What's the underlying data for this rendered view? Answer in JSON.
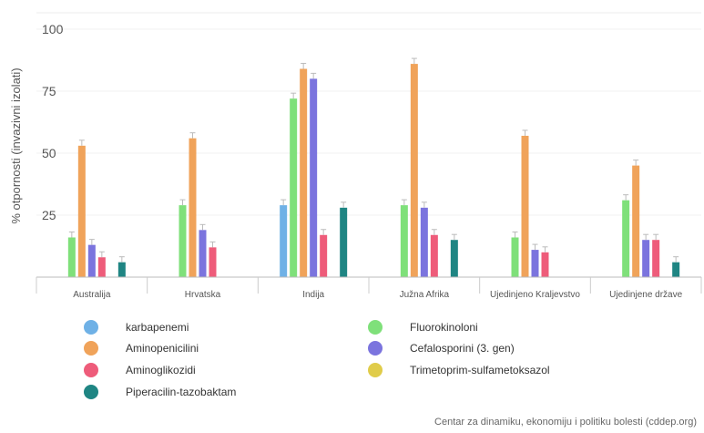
{
  "chart_data": {
    "type": "bar",
    "ylabel": "% otpornosti (invazivni izolati)",
    "ylim": [
      0,
      100
    ],
    "yticks": [
      25,
      50,
      75,
      100
    ],
    "categories": [
      "Australija",
      "Hrvatska",
      "Indija",
      "Južna Afrika",
      "Ujedinjeno Kraljevstvo",
      "Ujedinjene države"
    ],
    "series": [
      {
        "name": "karbapenemi",
        "color": "#6fb1e6",
        "values": [
          null,
          null,
          29,
          null,
          null,
          null
        ]
      },
      {
        "name": "Fluorokinoloni",
        "color": "#7fe07a",
        "values": [
          16,
          29,
          72,
          29,
          16,
          31
        ]
      },
      {
        "name": "Aminopenicilini",
        "color": "#f0a35a",
        "values": [
          53,
          56,
          84,
          86,
          57,
          45
        ]
      },
      {
        "name": "Cefalosporini (3. gen)",
        "color": "#7b74de",
        "values": [
          13,
          19,
          80,
          28,
          11,
          15
        ]
      },
      {
        "name": "Aminoglikozidi",
        "color": "#ee5c7a",
        "values": [
          8,
          12,
          17,
          17,
          10,
          15
        ]
      },
      {
        "name": "Trimetoprim-sulfametoksazol",
        "color": "#e0cc4a",
        "values": [
          null,
          null,
          null,
          null,
          null,
          null
        ]
      },
      {
        "name": "Piperacilin-tazobaktam",
        "color": "#1f8583",
        "values": [
          6,
          null,
          28,
          15,
          null,
          6
        ]
      }
    ],
    "legend_position": "bottom",
    "grid": true
  },
  "source": "Centar za dinamiku, ekonomiju i politiku bolesti (cddep.org)"
}
